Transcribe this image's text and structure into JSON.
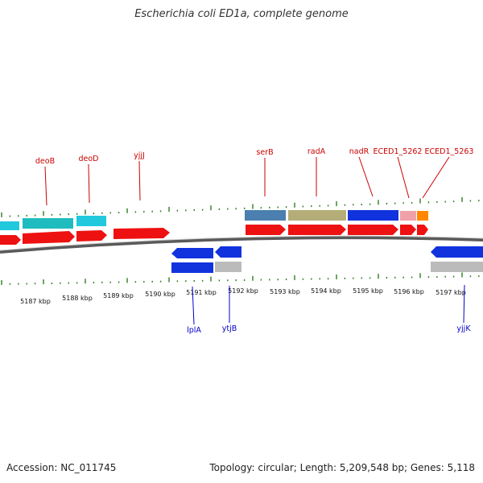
{
  "title": "Escherichia coli ED1a, complete genome",
  "footer": {
    "accession": "Accession: NC_011745",
    "summary": "Topology: circular; Length: 5,209,548 bp; Genes: 5,118"
  },
  "colors": {
    "top_label": "#cc0000",
    "bottom_label": "#0000cc",
    "tick": "#2e7d1e",
    "backbone": "#777777",
    "forward_cds": "#ee1111",
    "reverse_cds": "#1133dd",
    "grey_feature": "#bbbbbb"
  },
  "kbp_ticks": [
    "5187 kbp",
    "5188 kbp",
    "5189 kbp",
    "5190 kbp",
    "5191 kbp",
    "5192 kbp",
    "5193 kbp",
    "5194 kbp",
    "5195 kbp",
    "5196 kbp",
    "5197 kbp"
  ],
  "top_genes": [
    "deoB",
    "deoD",
    "yjjJ",
    "serB",
    "radA",
    "nadR",
    "ECED1_5262",
    "ECED1_5263"
  ],
  "bottom_genes": [
    "lplA",
    "ytjB",
    "yjjK"
  ]
}
